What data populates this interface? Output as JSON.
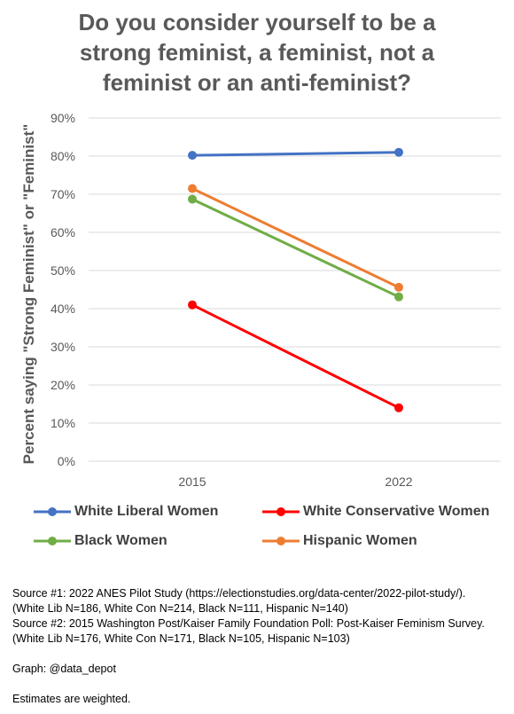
{
  "title_lines": [
    "Do you consider yourself to be a",
    "strong feminist, a feminist, not a",
    "feminist or an anti-feminist?"
  ],
  "chart_data": {
    "type": "line",
    "title": "Do you consider yourself to be a strong feminist, a feminist, not a feminist or an anti-feminist?",
    "xlabel": "",
    "ylabel": "Percent saying \"Strong Feminist\" or \"Feminist\"",
    "x": [
      "2015",
      "2022"
    ],
    "ylim": [
      0,
      90
    ],
    "yticks": [
      0,
      10,
      20,
      30,
      40,
      50,
      60,
      70,
      80,
      90
    ],
    "ytick_labels": [
      "0%",
      "10%",
      "20%",
      "30%",
      "40%",
      "50%",
      "60%",
      "70%",
      "80%",
      "90%"
    ],
    "grid": true,
    "legend_position": "bottom",
    "series": [
      {
        "name": "White Liberal Women",
        "values": [
          80.2,
          81.0
        ],
        "color": "#4472C4"
      },
      {
        "name": "White Conservative Women",
        "values": [
          41.0,
          14.0
        ],
        "color": "#FF0000"
      },
      {
        "name": "Black Women",
        "values": [
          68.7,
          43.1
        ],
        "color": "#70AD47"
      },
      {
        "name": "Hispanic Women",
        "values": [
          71.5,
          45.6
        ],
        "color": "#ED7D31"
      }
    ]
  },
  "notes": {
    "source1_line1": "Source #1: 2022 ANES Pilot Study (https://electionstudies.org/data-center/2022-pilot-study/).",
    "source1_line2": "(White Lib N=186, White Con N=214, Black N=111, Hispanic N=140)",
    "source2_line1": "Source #2: 2015 Washington Post/Kaiser Family Foundation Poll: Post-Kaiser Feminism Survey.",
    "source2_line2": "(White Lib N=176, White Con N=171, Black N=105, Hispanic N=103)",
    "graph_credit": "Graph: @data_depot",
    "weighting": "Estimates are weighted."
  }
}
